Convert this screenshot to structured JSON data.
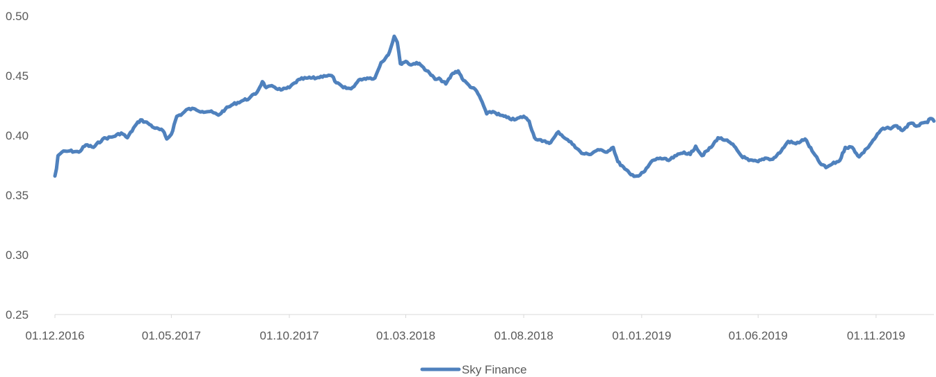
{
  "chart_data": {
    "type": "line",
    "title": "",
    "xlabel": "",
    "ylabel": "",
    "ylim": [
      0.25,
      0.5
    ],
    "yticks": [
      "0.50",
      "0.45",
      "0.40",
      "0.35",
      "0.30",
      "0.25"
    ],
    "xticks": [
      "01.12.2016",
      "01.05.2017",
      "01.10.2017",
      "01.03.2018",
      "01.08.2018",
      "01.01.2019",
      "01.06.2019",
      "01.11.2019"
    ],
    "xlim": [
      "2016-12-01",
      "2020-01-15"
    ],
    "grid": false,
    "legend_position": "bottom",
    "series": [
      {
        "name": "Sky Finance",
        "color": "#4f81bd",
        "points": [
          [
            "2016-12-01",
            0.366
          ],
          [
            "2016-12-03",
            0.372
          ],
          [
            "2016-12-05",
            0.383
          ],
          [
            "2016-12-10",
            0.386
          ],
          [
            "2016-12-20",
            0.387
          ],
          [
            "2017-01-01",
            0.386
          ],
          [
            "2017-01-10",
            0.392
          ],
          [
            "2017-01-20",
            0.39
          ],
          [
            "2017-02-01",
            0.397
          ],
          [
            "2017-02-15",
            0.399
          ],
          [
            "2017-02-25",
            0.402
          ],
          [
            "2017-03-05",
            0.398
          ],
          [
            "2017-03-15",
            0.408
          ],
          [
            "2017-03-22",
            0.413
          ],
          [
            "2017-04-01",
            0.41
          ],
          [
            "2017-04-10",
            0.406
          ],
          [
            "2017-04-20",
            0.404
          ],
          [
            "2017-04-25",
            0.397
          ],
          [
            "2017-05-01",
            0.401
          ],
          [
            "2017-05-08",
            0.416
          ],
          [
            "2017-05-15",
            0.418
          ],
          [
            "2017-05-22",
            0.422
          ],
          [
            "2017-06-01",
            0.422
          ],
          [
            "2017-06-10",
            0.42
          ],
          [
            "2017-06-20",
            0.42
          ],
          [
            "2017-07-01",
            0.417
          ],
          [
            "2017-07-10",
            0.422
          ],
          [
            "2017-07-20",
            0.426
          ],
          [
            "2017-08-01",
            0.429
          ],
          [
            "2017-08-10",
            0.431
          ],
          [
            "2017-08-20",
            0.436
          ],
          [
            "2017-08-27",
            0.445
          ],
          [
            "2017-09-01",
            0.44
          ],
          [
            "2017-09-10",
            0.441
          ],
          [
            "2017-09-20",
            0.438
          ],
          [
            "2017-10-01",
            0.44
          ],
          [
            "2017-10-08",
            0.444
          ],
          [
            "2017-10-15",
            0.447
          ],
          [
            "2017-10-25",
            0.448
          ],
          [
            "2017-11-05",
            0.448
          ],
          [
            "2017-11-15",
            0.45
          ],
          [
            "2017-11-25",
            0.45
          ],
          [
            "2017-12-01",
            0.444
          ],
          [
            "2017-12-10",
            0.44
          ],
          [
            "2017-12-20",
            0.439
          ],
          [
            "2018-01-01",
            0.447
          ],
          [
            "2018-01-10",
            0.448
          ],
          [
            "2018-01-20",
            0.448
          ],
          [
            "2018-01-28",
            0.461
          ],
          [
            "2018-02-03",
            0.465
          ],
          [
            "2018-02-08",
            0.47
          ],
          [
            "2018-02-14",
            0.483
          ],
          [
            "2018-02-18",
            0.478
          ],
          [
            "2018-02-22",
            0.46
          ],
          [
            "2018-03-01",
            0.462
          ],
          [
            "2018-03-08",
            0.459
          ],
          [
            "2018-03-15",
            0.461
          ],
          [
            "2018-03-22",
            0.458
          ],
          [
            "2018-04-01",
            0.452
          ],
          [
            "2018-04-08",
            0.447
          ],
          [
            "2018-04-15",
            0.447
          ],
          [
            "2018-04-22",
            0.443
          ],
          [
            "2018-05-01",
            0.452
          ],
          [
            "2018-05-08",
            0.454
          ],
          [
            "2018-05-15",
            0.446
          ],
          [
            "2018-05-22",
            0.442
          ],
          [
            "2018-06-01",
            0.437
          ],
          [
            "2018-06-08",
            0.428
          ],
          [
            "2018-06-14",
            0.418
          ],
          [
            "2018-06-22",
            0.42
          ],
          [
            "2018-07-01",
            0.417
          ],
          [
            "2018-07-10",
            0.415
          ],
          [
            "2018-07-20",
            0.413
          ],
          [
            "2018-08-01",
            0.416
          ],
          [
            "2018-08-08",
            0.412
          ],
          [
            "2018-08-15",
            0.398
          ],
          [
            "2018-08-25",
            0.395
          ],
          [
            "2018-09-05",
            0.394
          ],
          [
            "2018-09-15",
            0.403
          ],
          [
            "2018-09-25",
            0.397
          ],
          [
            "2018-10-05",
            0.392
          ],
          [
            "2018-10-15",
            0.385
          ],
          [
            "2018-10-25",
            0.384
          ],
          [
            "2018-11-05",
            0.388
          ],
          [
            "2018-11-15",
            0.386
          ],
          [
            "2018-11-25",
            0.39
          ],
          [
            "2018-12-01",
            0.378
          ],
          [
            "2018-12-10",
            0.372
          ],
          [
            "2018-12-18",
            0.367
          ],
          [
            "2018-12-28",
            0.366
          ],
          [
            "2019-01-05",
            0.37
          ],
          [
            "2019-01-15",
            0.379
          ],
          [
            "2019-01-25",
            0.381
          ],
          [
            "2019-02-05",
            0.379
          ],
          [
            "2019-02-15",
            0.383
          ],
          [
            "2019-02-25",
            0.386
          ],
          [
            "2019-03-05",
            0.384
          ],
          [
            "2019-03-12",
            0.391
          ],
          [
            "2019-03-20",
            0.383
          ],
          [
            "2019-04-01",
            0.39
          ],
          [
            "2019-04-10",
            0.398
          ],
          [
            "2019-04-20",
            0.396
          ],
          [
            "2019-05-01",
            0.391
          ],
          [
            "2019-05-10",
            0.383
          ],
          [
            "2019-05-20",
            0.379
          ],
          [
            "2019-06-01",
            0.378
          ],
          [
            "2019-06-10",
            0.381
          ],
          [
            "2019-06-20",
            0.38
          ],
          [
            "2019-07-01",
            0.387
          ],
          [
            "2019-07-10",
            0.395
          ],
          [
            "2019-07-20",
            0.393
          ],
          [
            "2019-08-01",
            0.397
          ],
          [
            "2019-08-10",
            0.387
          ],
          [
            "2019-08-20",
            0.377
          ],
          [
            "2019-08-28",
            0.373
          ],
          [
            "2019-09-05",
            0.376
          ],
          [
            "2019-09-15",
            0.379
          ],
          [
            "2019-09-22",
            0.39
          ],
          [
            "2019-10-01",
            0.39
          ],
          [
            "2019-10-10",
            0.382
          ],
          [
            "2019-10-20",
            0.389
          ],
          [
            "2019-11-01",
            0.399
          ],
          [
            "2019-11-08",
            0.405
          ],
          [
            "2019-11-18",
            0.406
          ],
          [
            "2019-11-28",
            0.408
          ],
          [
            "2019-12-05",
            0.404
          ],
          [
            "2019-12-15",
            0.41
          ],
          [
            "2019-12-25",
            0.408
          ],
          [
            "2020-01-05",
            0.411
          ],
          [
            "2020-01-12",
            0.414
          ],
          [
            "2020-01-15",
            0.412
          ]
        ]
      }
    ]
  }
}
